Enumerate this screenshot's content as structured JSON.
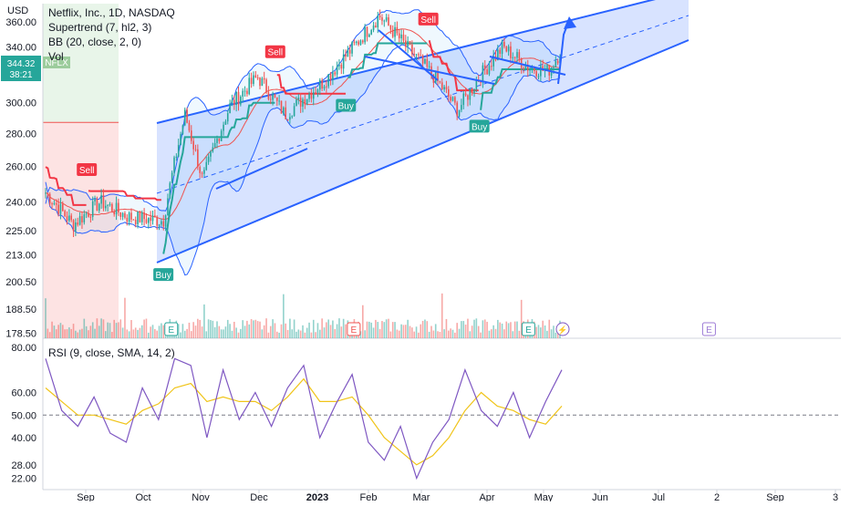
{
  "header": {
    "title": "Netflix, Inc., 1D, NASDAQ",
    "indicators": [
      "Supertrend (7, hl2, 3)",
      "BB (20, close, 2, 0)",
      "Vol"
    ],
    "currency": "USD"
  },
  "price_tags": {
    "last_price": "344.32",
    "countdown": "38:21",
    "symbol": "NFLX"
  },
  "signals": {
    "buy_label": "Buy",
    "sell_label": "Sell",
    "earnings_label": "E"
  },
  "rsi_legend": "RSI (9, close, SMA, 14, 2)",
  "colors": {
    "up": "#26a69a",
    "down": "#ef5350",
    "buy": "#26a69a",
    "sell": "#f23645",
    "channel": "#2962ff",
    "bb": "#2962ff",
    "rsi": "#7e57c2",
    "rsi_ma": "#f0c419"
  },
  "chart_data": [
    {
      "type": "candlestick",
      "title": "Netflix, Inc., 1D, NASDAQ",
      "ylabel": "USD",
      "ylim": [
        176.5,
        375
      ],
      "y_scale": "log",
      "y_ticks": [
        178.5,
        188.5,
        200.5,
        213,
        225,
        240,
        260,
        280,
        300,
        320,
        340,
        360
      ],
      "x_ticks": [
        "Sep",
        "Oct",
        "Nov",
        "Dec",
        "2023",
        "Feb",
        "Mar",
        "Apr",
        "May",
        "Jun",
        "Jul",
        "2",
        "Sep",
        "3"
      ],
      "approx_close_series": [
        {
          "date": "2022-08-15",
          "close": 245
        },
        {
          "date": "2022-08-29",
          "close": 228
        },
        {
          "date": "2022-09-12",
          "close": 240
        },
        {
          "date": "2022-09-26",
          "close": 232
        },
        {
          "date": "2022-10-14",
          "close": 230
        },
        {
          "date": "2022-10-25",
          "close": 292
        },
        {
          "date": "2022-11-03",
          "close": 252
        },
        {
          "date": "2022-11-17",
          "close": 298
        },
        {
          "date": "2022-12-01",
          "close": 318
        },
        {
          "date": "2022-12-15",
          "close": 292
        },
        {
          "date": "2023-01-04",
          "close": 315
        },
        {
          "date": "2023-01-20",
          "close": 342
        },
        {
          "date": "2023-02-01",
          "close": 365
        },
        {
          "date": "2023-02-15",
          "close": 340
        },
        {
          "date": "2023-03-01",
          "close": 318
        },
        {
          "date": "2023-03-13",
          "close": 295
        },
        {
          "date": "2023-03-24",
          "close": 318
        },
        {
          "date": "2023-04-05",
          "close": 340
        },
        {
          "date": "2023-04-18",
          "close": 325
        },
        {
          "date": "2023-04-28",
          "close": 322
        },
        {
          "date": "2023-05-05",
          "close": 338
        }
      ],
      "signals": [
        {
          "type": "Sell",
          "date": "2022-09-05"
        },
        {
          "type": "Buy",
          "date": "2022-10-14"
        },
        {
          "type": "Sell",
          "date": "2022-12-10"
        },
        {
          "type": "Buy",
          "date": "2023-01-15"
        },
        {
          "type": "Sell",
          "date": "2023-02-26"
        },
        {
          "type": "Buy",
          "date": "2023-03-24"
        }
      ],
      "earnings": [
        "2022-10-18",
        "2023-01-19",
        "2023-04-18",
        "2023-07-19"
      ],
      "last_price": 344.32,
      "annotations": [
        "ascending channel",
        "projection arrow"
      ]
    },
    {
      "type": "line",
      "title": "RSI (9, close, SMA, 14, 2)",
      "ylim": [
        17,
        82
      ],
      "y_ticks": [
        22,
        28,
        40,
        50,
        60,
        80
      ],
      "series": [
        {
          "name": "RSI",
          "values": [
            75,
            52,
            45,
            58,
            42,
            38,
            62,
            48,
            75,
            72,
            40,
            70,
            48,
            60,
            45,
            62,
            72,
            40,
            55,
            68,
            38,
            30,
            45,
            22,
            38,
            48,
            70,
            52,
            45,
            60,
            40,
            56,
            70
          ]
        },
        {
          "name": "SMA",
          "values": [
            62,
            56,
            50,
            50,
            48,
            46,
            52,
            55,
            62,
            64,
            56,
            58,
            56,
            56,
            52,
            58,
            66,
            56,
            56,
            58,
            50,
            40,
            34,
            28,
            32,
            40,
            52,
            60,
            54,
            52,
            48,
            46,
            54
          ]
        }
      ],
      "reference_line": 50
    }
  ]
}
